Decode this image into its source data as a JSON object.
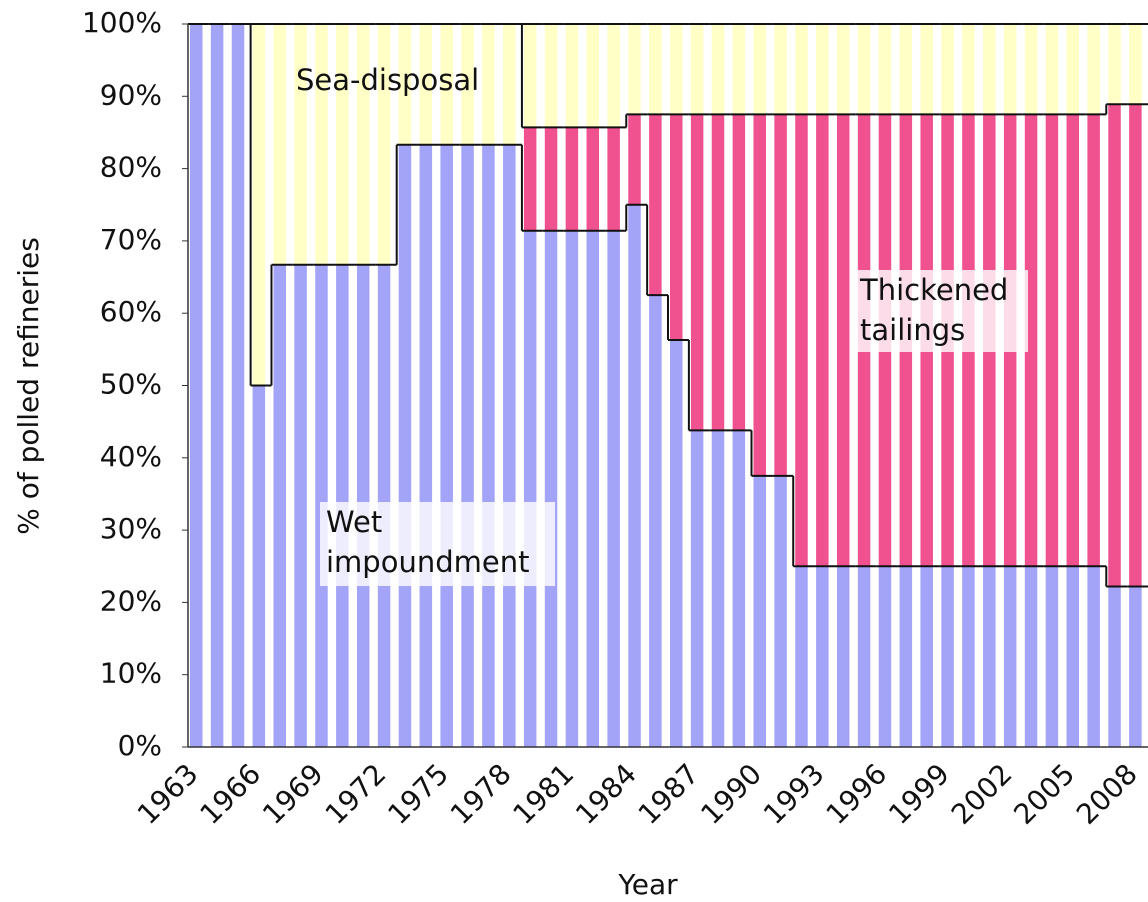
{
  "chart_data": {
    "type": "stacked_bar",
    "x_label": "Year",
    "y_label": "% of polled refineries",
    "categories": [
      "1963",
      null,
      null,
      "1966",
      null,
      null,
      "1969",
      null,
      null,
      "1972",
      null,
      null,
      "1975",
      null,
      null,
      "1978",
      null,
      null,
      "1981",
      null,
      null,
      "1984",
      null,
      null,
      "1987",
      null,
      null,
      "1990",
      null,
      null,
      "1993",
      null,
      null,
      "1996",
      null,
      null,
      "1999",
      null,
      null,
      "2002",
      null,
      null,
      "2005",
      null,
      null,
      "2008"
    ],
    "series": [
      {
        "name": "Wet impoundment",
        "color": "#a3a3f7",
        "values": [
          100,
          100,
          100,
          50,
          66.7,
          66.7,
          66.7,
          66.7,
          66.7,
          66.7,
          83.3,
          83.3,
          83.3,
          83.3,
          83.3,
          83.3,
          71.4,
          71.4,
          71.4,
          71.4,
          71.4,
          75,
          62.5,
          56.3,
          43.8,
          43.8,
          43.8,
          37.5,
          37.5,
          25,
          25,
          25,
          25,
          25,
          25,
          25,
          25,
          25,
          25,
          25,
          25,
          25,
          25,
          25,
          22.2,
          22.2
        ]
      },
      {
        "name": "Thickened tailings",
        "color": "#f0528f",
        "values": [
          0,
          0,
          0,
          0,
          0,
          0,
          0,
          0,
          0,
          0,
          0,
          0,
          0,
          0,
          0,
          0,
          14.3,
          14.3,
          14.3,
          14.3,
          14.3,
          12.5,
          25,
          31.2,
          43.7,
          43.7,
          43.7,
          50,
          50,
          62.5,
          62.5,
          62.5,
          62.5,
          62.5,
          62.5,
          62.5,
          62.5,
          62.5,
          62.5,
          62.5,
          62.5,
          62.5,
          62.5,
          62.5,
          66.7,
          66.7
        ]
      },
      {
        "name": "Sea-disposal",
        "color": "#ffffc6",
        "values": [
          0,
          0,
          0,
          50,
          33.3,
          33.3,
          33.3,
          33.3,
          33.3,
          33.3,
          16.7,
          16.7,
          16.7,
          16.7,
          16.7,
          16.7,
          14.3,
          14.3,
          14.3,
          14.3,
          14.3,
          12.5,
          12.5,
          12.5,
          12.5,
          12.5,
          12.5,
          12.5,
          12.5,
          12.5,
          12.5,
          12.5,
          12.5,
          12.5,
          12.5,
          12.5,
          12.5,
          12.5,
          12.5,
          12.5,
          12.5,
          12.5,
          12.5,
          12.5,
          11.1,
          11.1
        ]
      }
    ],
    "ylim": [
      0,
      100
    ],
    "yticks": [
      {
        "value": 0,
        "label": "0%"
      },
      {
        "value": 10,
        "label": "10%"
      },
      {
        "value": 20,
        "label": "20%"
      },
      {
        "value": 30,
        "label": "30%"
      },
      {
        "value": 40,
        "label": "40%"
      },
      {
        "value": 50,
        "label": "50%"
      },
      {
        "value": 60,
        "label": "60%"
      },
      {
        "value": 70,
        "label": "70%"
      },
      {
        "value": 80,
        "label": "80%"
      },
      {
        "value": 90,
        "label": "90%"
      },
      {
        "value": 100,
        "label": "100%"
      }
    ],
    "annotations": [
      {
        "lines": [
          "Sea-disposal"
        ]
      },
      {
        "lines": [
          "Wet",
          "impoundment"
        ]
      },
      {
        "lines": [
          "Thickened",
          "tailings"
        ]
      }
    ]
  }
}
